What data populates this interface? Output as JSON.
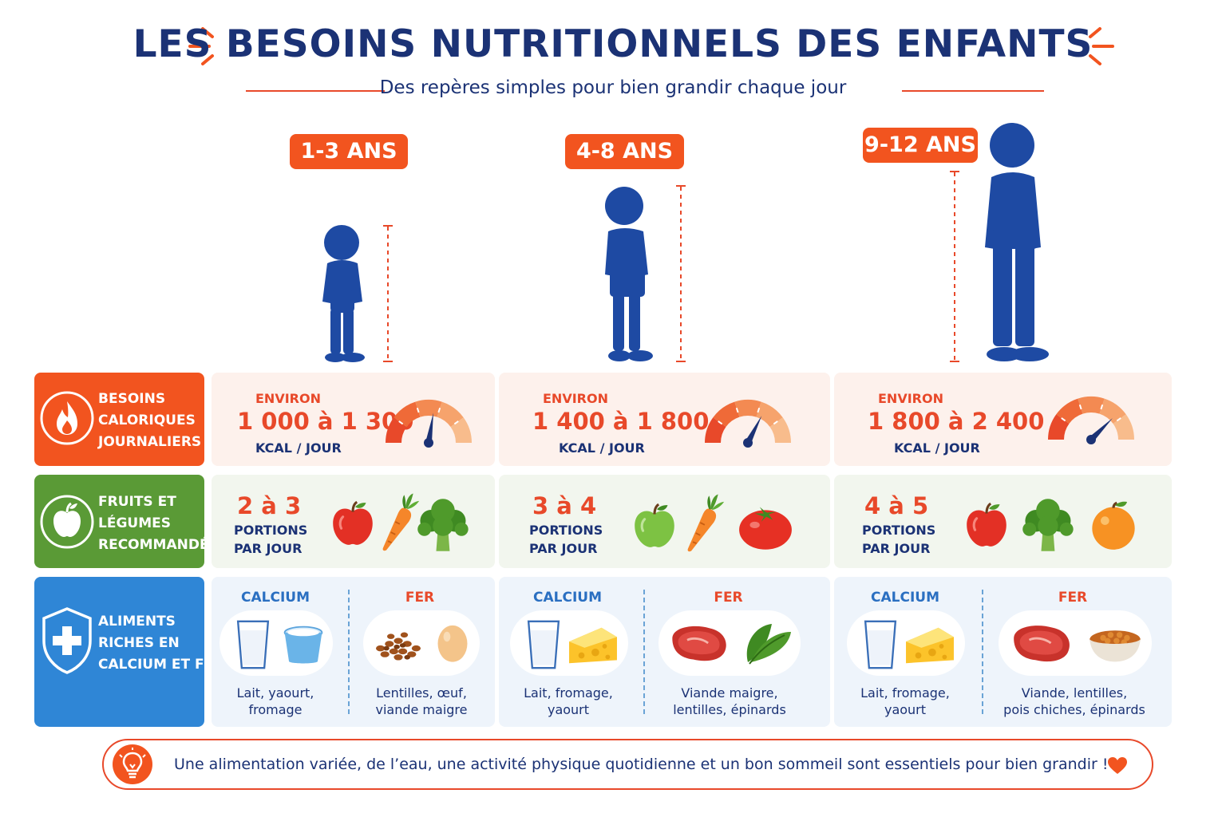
{
  "header": {
    "title": "LES BESOINS NUTRITIONNELS DES ENFANTS",
    "subtitle": "Des repères simples pour bien grandir chaque jour"
  },
  "colors": {
    "navy": "#1b3275",
    "orange": "#f2541f",
    "green": "#5a9a36",
    "blue": "#2f86d6"
  },
  "age_groups": [
    {
      "label": "1-3 ANS"
    },
    {
      "label": "4-8 ANS"
    },
    {
      "label": "9-12 ANS"
    }
  ],
  "rows": {
    "calories": {
      "label": [
        "BESOINS",
        "CALORIQUES",
        "JOURNALIERS"
      ],
      "icon": "flame-icon",
      "cells": [
        {
          "prefix": "ENVIRON",
          "range": "1 000 à 1 300",
          "unit": "KCAL / JOUR",
          "gauge_level": 0.55
        },
        {
          "prefix": "ENVIRON",
          "range": "1 400 à 1 800",
          "unit": "KCAL / JOUR",
          "gauge_level": 0.65
        },
        {
          "prefix": "ENVIRON",
          "range": "1 800 à 2 400",
          "unit": "KCAL / JOUR",
          "gauge_level": 0.75
        }
      ]
    },
    "fruits": {
      "label": [
        "FRUITS ET",
        "LÉGUMES",
        "RECOMMANDÉS"
      ],
      "icon": "apple-icon",
      "cells": [
        {
          "portions": "2 à 3",
          "line1": "PORTIONS",
          "line2": "PAR JOUR",
          "foods": [
            "apple-icon",
            "carrot-icon",
            "broccoli-icon"
          ]
        },
        {
          "portions": "3 à 4",
          "line1": "PORTIONS",
          "line2": "PAR JOUR",
          "foods": [
            "green-apple-icon",
            "carrot-icon",
            "tomato-icon"
          ]
        },
        {
          "portions": "4 à 5",
          "line1": "PORTIONS",
          "line2": "PAR JOUR",
          "foods": [
            "apple-icon",
            "broccoli-icon",
            "orange-icon"
          ]
        }
      ]
    },
    "nutrients": {
      "label": [
        "ALIMENTS",
        "RICHES EN",
        "CALCIUM ET FER"
      ],
      "icon": "shield-cross-icon",
      "cells": [
        {
          "calcium": {
            "title": "CALCIUM",
            "text": [
              "Lait, yaourt,",
              "fromage"
            ],
            "foods": [
              "milk-glass-icon",
              "yogurt-icon"
            ]
          },
          "fer": {
            "title": "FER",
            "text": [
              "Lentilles, œuf,",
              "viande maigre"
            ],
            "foods": [
              "lentils-icon",
              "egg-icon"
            ]
          }
        },
        {
          "calcium": {
            "title": "CALCIUM",
            "text": [
              "Lait, fromage,",
              "yaourt"
            ],
            "foods": [
              "milk-glass-icon",
              "cheese-icon"
            ]
          },
          "fer": {
            "title": "FER",
            "text": [
              "Viande maigre,",
              "lentilles, épinards"
            ],
            "foods": [
              "steak-icon",
              "spinach-icon"
            ]
          }
        },
        {
          "calcium": {
            "title": "CALCIUM",
            "text": [
              "Lait, fromage,",
              "yaourt"
            ],
            "foods": [
              "milk-glass-icon",
              "cheese-icon"
            ]
          },
          "fer": {
            "title": "FER",
            "text": [
              "Viande, lentilles,",
              "pois chiches, épinards"
            ],
            "foods": [
              "steak-icon",
              "chickpeas-bowl-icon"
            ]
          }
        }
      ]
    }
  },
  "footer": {
    "text": "Une alimentation variée, de l’eau, une activité physique quotidienne et un bon sommeil sont essentiels pour bien grandir !",
    "icon": "lightbulb-icon",
    "heart": "heart-icon"
  }
}
